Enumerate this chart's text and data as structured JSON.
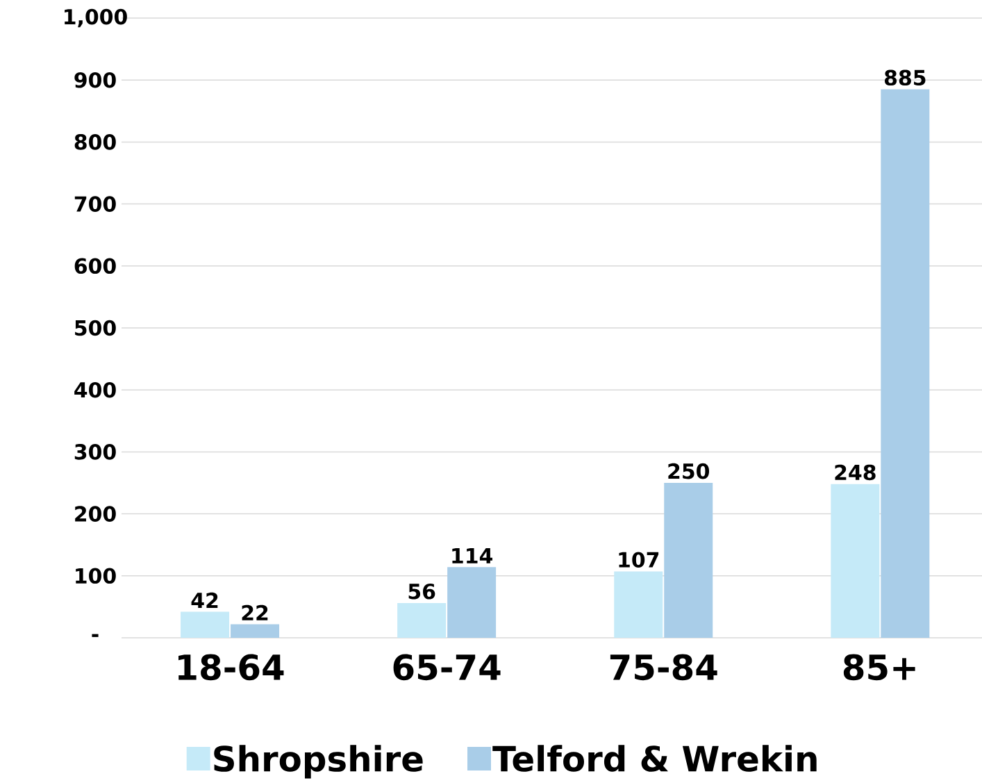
{
  "chart_data": {
    "type": "bar",
    "categories": [
      "18-64",
      "65-74",
      "75-84",
      "85+"
    ],
    "series": [
      {
        "name": "Shropshire",
        "color": "#c5eaf8",
        "values": [
          42,
          56,
          107,
          248
        ]
      },
      {
        "name": "Telford & Wrekin",
        "color": "#a9cde8",
        "values": [
          22,
          114,
          250,
          885
        ]
      }
    ],
    "ylim": [
      0,
      1000
    ],
    "yticks": [
      {
        "value": 0,
        "label": "-"
      },
      100,
      200,
      300,
      400,
      500,
      600,
      700,
      800,
      900,
      {
        "value": 1000,
        "label": "1,000"
      }
    ],
    "grid": "y",
    "legend": "bottom",
    "data_labels": true
  }
}
